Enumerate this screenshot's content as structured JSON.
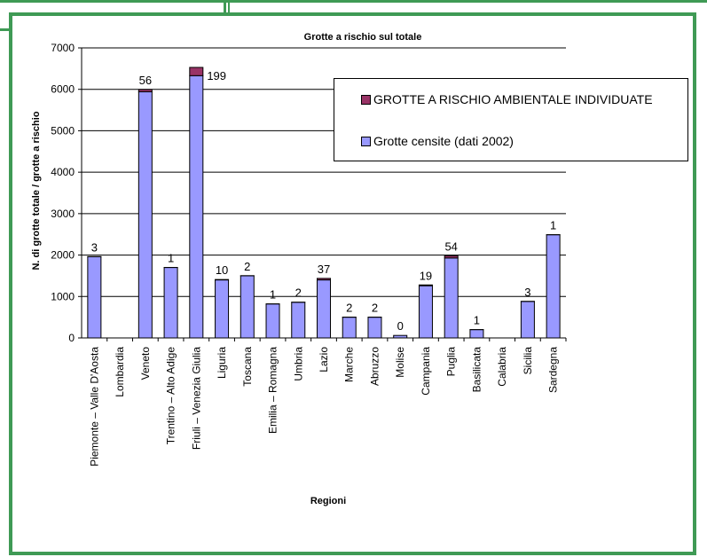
{
  "chart_data": {
    "type": "bar",
    "stacked": true,
    "title": "Grotte a rischio sul totale",
    "xlabel": "Regioni",
    "ylabel": "N. di grotte totale / grotte a rischio",
    "ylim": [
      0,
      7000
    ],
    "yticks": [
      0,
      1000,
      2000,
      3000,
      4000,
      5000,
      6000,
      7000
    ],
    "grid": true,
    "legend_position": "right",
    "categories": [
      "Piemonte – Valle D'Aosta",
      "Lombardia",
      "Veneto",
      "Trentino – Alto Adige",
      "Friuli – Venezia Giulia",
      "Liguria",
      "Toscana",
      "Emilia – Romagna",
      "Umbria",
      "Lazio",
      "Marche",
      "Abruzzo",
      "Molise",
      "Campania",
      "Puglia",
      "Basilicata",
      "Calabria",
      "Sicilia",
      "Sardegna"
    ],
    "series": [
      {
        "name": "Grotte censite (dati 2002)",
        "color": "#9999ff",
        "values": [
          1960,
          null,
          5940,
          1700,
          6330,
          1400,
          1500,
          820,
          860,
          1400,
          500,
          500,
          60,
          1260,
          1930,
          200,
          null,
          880,
          2490
        ]
      },
      {
        "name": "GROTTE A RISCHIO AMBIENTALE INDIVIDUATE",
        "color": "#993366",
        "values": [
          3,
          null,
          56,
          1,
          199,
          10,
          2,
          1,
          2,
          37,
          2,
          2,
          0,
          19,
          54,
          1,
          null,
          3,
          1
        ]
      }
    ],
    "data_labels": [
      "3",
      "",
      "56",
      "1",
      "199",
      "10",
      "2",
      "1",
      "2",
      "37",
      "2",
      "2",
      "0",
      "19",
      "54",
      "1",
      "",
      "3",
      "1"
    ]
  }
}
